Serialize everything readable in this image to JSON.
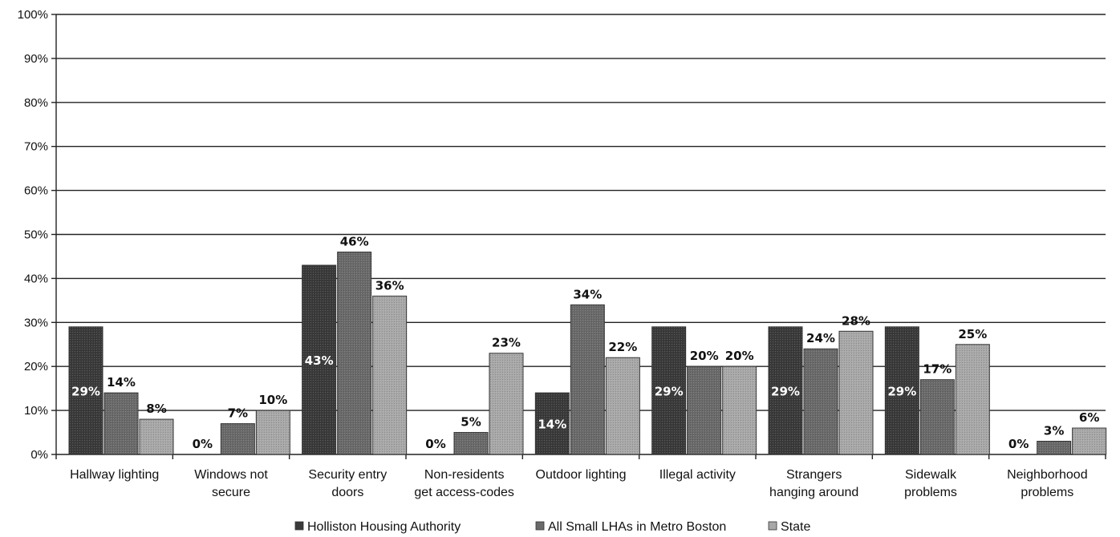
{
  "chart_data": {
    "type": "bar",
    "categories": [
      [
        "Hallway lighting"
      ],
      [
        "Windows not",
        "secure"
      ],
      [
        "Security entry",
        "doors"
      ],
      [
        "Non-residents",
        "get access-codes"
      ],
      [
        "Outdoor lighting"
      ],
      [
        "Illegal activity"
      ],
      [
        "Strangers",
        "hanging around"
      ],
      [
        "Sidewalk",
        "problems"
      ],
      [
        "Neighborhood",
        "problems"
      ]
    ],
    "series": [
      {
        "name": "Holliston Housing Authority",
        "color": "#3a3a3a",
        "values": [
          29,
          0,
          43,
          0,
          14,
          29,
          29,
          29,
          0
        ],
        "labels": [
          "29%",
          "0%",
          "43%",
          "0%",
          "14%",
          "29%",
          "29%",
          "29%",
          "0%"
        ]
      },
      {
        "name": "All Small LHAs in Metro Boston",
        "color": "#6a6a6a",
        "values": [
          14,
          7,
          46,
          5,
          34,
          20,
          24,
          17,
          3
        ],
        "labels": [
          "14%",
          "7%",
          "46%",
          "5%",
          "34%",
          "20%",
          "24%",
          "17%",
          "3%"
        ]
      },
      {
        "name": "State",
        "color": "#a8a8a8",
        "values": [
          8,
          10,
          36,
          23,
          22,
          20,
          28,
          25,
          6
        ],
        "labels": [
          "8%",
          "10%",
          "36%",
          "23%",
          "22%",
          "20%",
          "28%",
          "25%",
          "6%"
        ]
      }
    ],
    "yticks": [
      "0%",
      "10%",
      "20%",
      "30%",
      "40%",
      "50%",
      "60%",
      "70%",
      "80%",
      "90%",
      "100%"
    ],
    "ylim": [
      0,
      100
    ],
    "grid": true,
    "legend": "bottom"
  }
}
